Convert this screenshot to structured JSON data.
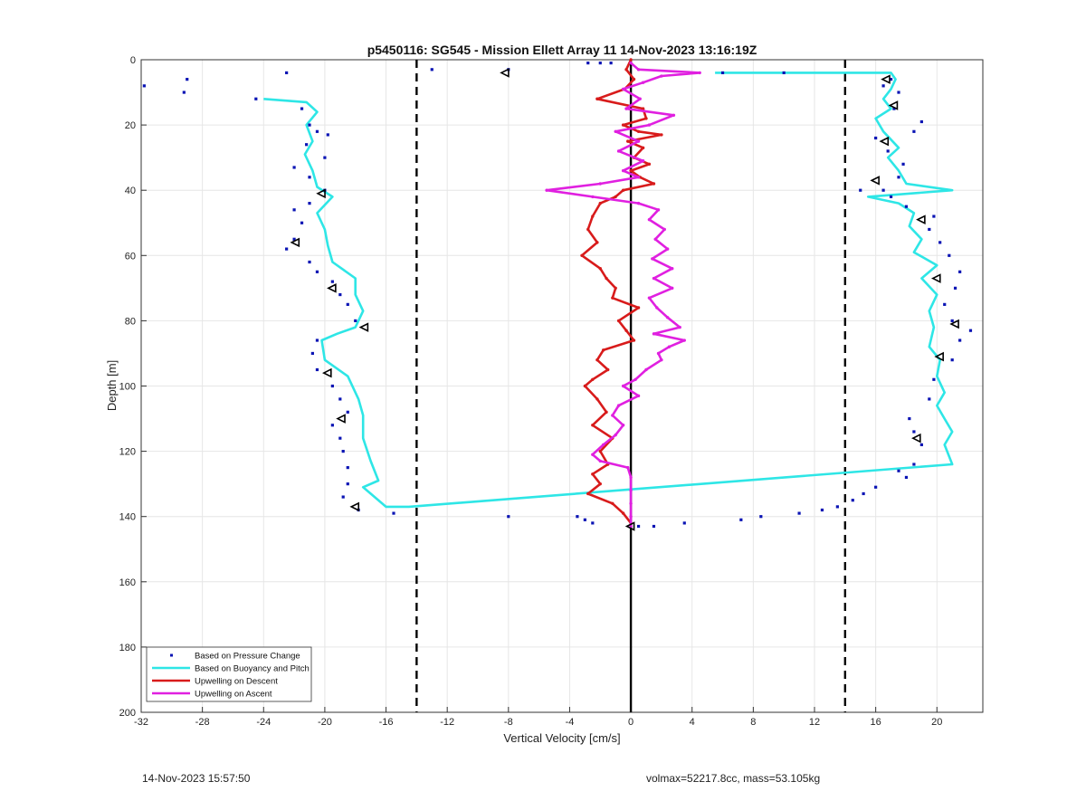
{
  "footer": {
    "timestamp": "14-Nov-2023 15:57:50",
    "params": "volmax=52217.8cc, mass=53.105kg"
  },
  "chart_data": {
    "type": "line",
    "title": "p5450116: SG545 - Mission Ellett Array 11 14-Nov-2023 13:16:19Z",
    "xlabel": "Vertical Velocity [cm/s]",
    "ylabel": "Depth [m]",
    "xlim": [
      -32,
      23
    ],
    "ylim": [
      0,
      200
    ],
    "y_reversed": true,
    "xticks": [
      -32,
      -28,
      -24,
      -20,
      -16,
      -12,
      -8,
      -4,
      0,
      4,
      8,
      12,
      16,
      20
    ],
    "yticks": [
      0,
      20,
      40,
      60,
      80,
      100,
      120,
      140,
      160,
      180,
      200
    ],
    "grid": true,
    "legend_position": "bottom-left",
    "colors": {
      "pressure": "#0a14b4",
      "buoyancy": "#2ee6e6",
      "descent": "#d81b1b",
      "ascent": "#e020e0",
      "grid": "#e6e6e6",
      "axis": "#333333"
    },
    "reference_lines": {
      "dashed_x": [
        -14,
        14
      ],
      "solid_x": [
        0
      ]
    },
    "series": [
      {
        "name": "Based on Pressure Change",
        "style": "dots",
        "points": [
          [
            -31.8,
            8
          ],
          [
            -29,
            6
          ],
          [
            -29.2,
            10
          ],
          [
            -24.5,
            12
          ],
          [
            -22.5,
            4
          ],
          [
            -13,
            3
          ],
          [
            -8,
            3
          ],
          [
            -2.8,
            1
          ],
          [
            -2,
            1
          ],
          [
            -1.3,
            1
          ],
          [
            -21.5,
            15
          ],
          [
            -21,
            20
          ],
          [
            -20.5,
            22
          ],
          [
            -19.8,
            23
          ],
          [
            -21.2,
            26
          ],
          [
            -20,
            30
          ],
          [
            -22,
            33
          ],
          [
            -21,
            36
          ],
          [
            -20,
            40
          ],
          [
            -21,
            44
          ],
          [
            -22,
            46
          ],
          [
            -21.5,
            50
          ],
          [
            -22,
            55
          ],
          [
            -22.5,
            58
          ],
          [
            -21,
            62
          ],
          [
            -20.5,
            65
          ],
          [
            -19.5,
            68
          ],
          [
            -19,
            72
          ],
          [
            -18.5,
            75
          ],
          [
            -18,
            80
          ],
          [
            -20.5,
            86
          ],
          [
            -20.8,
            90
          ],
          [
            -20.5,
            95
          ],
          [
            -19.5,
            100
          ],
          [
            -19,
            104
          ],
          [
            -18.5,
            108
          ],
          [
            -19.5,
            112
          ],
          [
            -19,
            116
          ],
          [
            -18.8,
            120
          ],
          [
            -18.5,
            125
          ],
          [
            -18.5,
            130
          ],
          [
            -18.8,
            134
          ],
          [
            -17.8,
            138
          ],
          [
            -15.5,
            139
          ],
          [
            -8,
            140
          ],
          [
            -3.5,
            140
          ],
          [
            -3,
            141
          ],
          [
            -2.5,
            142
          ],
          [
            0.5,
            143
          ],
          [
            1.5,
            143
          ],
          [
            3.5,
            142
          ],
          [
            7.2,
            141
          ],
          [
            8.5,
            140
          ],
          [
            11,
            139
          ],
          [
            12.5,
            138
          ],
          [
            13.5,
            137
          ],
          [
            14.5,
            135
          ],
          [
            15.2,
            133
          ],
          [
            16,
            131
          ],
          [
            18,
            128
          ],
          [
            17.5,
            126
          ],
          [
            18.5,
            124
          ],
          [
            19,
            118
          ],
          [
            18.5,
            114
          ],
          [
            18.2,
            110
          ],
          [
            19.5,
            104
          ],
          [
            19.8,
            98
          ],
          [
            21,
            92
          ],
          [
            21.5,
            86
          ],
          [
            22.2,
            83
          ],
          [
            21,
            80
          ],
          [
            20.5,
            75
          ],
          [
            21.2,
            70
          ],
          [
            21.5,
            65
          ],
          [
            20.8,
            60
          ],
          [
            20.2,
            56
          ],
          [
            19.5,
            52
          ],
          [
            19.8,
            48
          ],
          [
            18,
            45
          ],
          [
            17,
            42
          ],
          [
            16.5,
            40
          ],
          [
            15,
            40
          ],
          [
            17.5,
            36
          ],
          [
            17.8,
            32
          ],
          [
            16.8,
            28
          ],
          [
            16,
            24
          ],
          [
            18.5,
            22
          ],
          [
            19,
            19
          ],
          [
            17.2,
            15
          ],
          [
            17.5,
            10
          ],
          [
            16.5,
            8
          ],
          [
            17,
            6
          ],
          [
            10,
            4
          ],
          [
            6,
            4
          ]
        ]
      },
      {
        "name": "Based on Buoyancy and Pitch",
        "style": "line",
        "points": [
          [
            5.5,
            4
          ],
          [
            17,
            4
          ],
          [
            17.3,
            6
          ],
          [
            17,
            9
          ],
          [
            16.5,
            12
          ],
          [
            17,
            15
          ],
          [
            16,
            18
          ],
          [
            16.5,
            22
          ],
          [
            17.5,
            27
          ],
          [
            16.8,
            30
          ],
          [
            17.5,
            34
          ],
          [
            18,
            38
          ],
          [
            21,
            40
          ],
          [
            15.5,
            42
          ],
          [
            17.5,
            44
          ],
          [
            18.5,
            47
          ],
          [
            18.2,
            51
          ],
          [
            19,
            55
          ],
          [
            18.5,
            59
          ],
          [
            20,
            63
          ],
          [
            19,
            67
          ],
          [
            20,
            72
          ],
          [
            19.5,
            77
          ],
          [
            19.8,
            82
          ],
          [
            19.5,
            88
          ],
          [
            20.2,
            92
          ],
          [
            20,
            97
          ],
          [
            20.5,
            102
          ],
          [
            20,
            106
          ],
          [
            20.5,
            110
          ],
          [
            21,
            114
          ],
          [
            20.5,
            118
          ],
          [
            21,
            124
          ],
          [
            -14.5,
            137
          ],
          [
            -16,
            137
          ],
          [
            -17.5,
            131
          ],
          [
            -16.5,
            129
          ],
          [
            -17,
            123
          ],
          [
            -17.5,
            116
          ],
          [
            -17.5,
            109
          ],
          [
            -17.8,
            104
          ],
          [
            -18.5,
            97
          ],
          [
            -20,
            92
          ],
          [
            -20.2,
            86
          ],
          [
            -19.2,
            84
          ],
          [
            -18,
            82
          ],
          [
            -17.5,
            77
          ],
          [
            -18,
            72
          ],
          [
            -18,
            67
          ],
          [
            -19.5,
            62
          ],
          [
            -19.8,
            57
          ],
          [
            -20,
            52
          ],
          [
            -20.5,
            47
          ],
          [
            -19.5,
            42
          ],
          [
            -20.5,
            39
          ],
          [
            -20.8,
            34
          ],
          [
            -21.3,
            29
          ],
          [
            -20.8,
            25
          ],
          [
            -21.2,
            20
          ],
          [
            -20.5,
            16
          ],
          [
            -21.2,
            13
          ],
          [
            -24,
            12
          ]
        ]
      },
      {
        "name": "Upwelling on Descent",
        "style": "line",
        "points": [
          [
            0,
            0
          ],
          [
            -0.3,
            3
          ],
          [
            0.2,
            6
          ],
          [
            -0.4,
            9
          ],
          [
            -2.2,
            12
          ],
          [
            0.8,
            15
          ],
          [
            1,
            18
          ],
          [
            -0.5,
            20
          ],
          [
            0.5,
            22
          ],
          [
            2,
            23
          ],
          [
            -0.2,
            25
          ],
          [
            0.8,
            27
          ],
          [
            0.2,
            30
          ],
          [
            1.2,
            32
          ],
          [
            0,
            34
          ],
          [
            0.6,
            36
          ],
          [
            1.5,
            38
          ],
          [
            -0.5,
            40
          ],
          [
            -1,
            42
          ],
          [
            -2,
            44
          ],
          [
            -2.5,
            48
          ],
          [
            -2.8,
            52
          ],
          [
            -2.2,
            56
          ],
          [
            -3.2,
            60
          ],
          [
            -2,
            64
          ],
          [
            -1.6,
            67
          ],
          [
            -1,
            70
          ],
          [
            -1.2,
            73
          ],
          [
            0.5,
            76
          ],
          [
            -0.8,
            80
          ],
          [
            -0.3,
            83
          ],
          [
            0.2,
            86
          ],
          [
            -1.8,
            89
          ],
          [
            -2.2,
            92
          ],
          [
            -1.5,
            95
          ],
          [
            -2.5,
            98
          ],
          [
            -3,
            100
          ],
          [
            -2.2,
            104
          ],
          [
            -1.6,
            108
          ],
          [
            -2.5,
            112
          ],
          [
            -1.2,
            116
          ],
          [
            -2,
            120
          ],
          [
            -1.5,
            124
          ],
          [
            -2.5,
            127
          ],
          [
            -2,
            130
          ],
          [
            -2.8,
            133
          ],
          [
            -1.2,
            136
          ],
          [
            -0.5,
            139
          ],
          [
            0,
            142
          ]
        ]
      },
      {
        "name": "Upwelling on Ascent",
        "style": "line",
        "points": [
          [
            0,
            143
          ],
          [
            0,
            140
          ],
          [
            0,
            136
          ],
          [
            0,
            132
          ],
          [
            0,
            128
          ],
          [
            -0.2,
            125
          ],
          [
            -2,
            123
          ],
          [
            -2.5,
            121
          ],
          [
            -1.8,
            118
          ],
          [
            -1,
            115
          ],
          [
            -0.5,
            112
          ],
          [
            -1.2,
            109
          ],
          [
            -0.8,
            106
          ],
          [
            0.5,
            103
          ],
          [
            -0.5,
            100
          ],
          [
            0.3,
            98
          ],
          [
            1,
            95
          ],
          [
            2,
            92
          ],
          [
            1.8,
            90
          ],
          [
            2.5,
            88
          ],
          [
            3.5,
            86
          ],
          [
            1.5,
            84
          ],
          [
            3.2,
            82
          ],
          [
            2.4,
            79
          ],
          [
            1.7,
            76
          ],
          [
            1.2,
            73
          ],
          [
            2.7,
            70
          ],
          [
            1.5,
            67
          ],
          [
            2.7,
            64
          ],
          [
            1.4,
            61
          ],
          [
            2.4,
            58
          ],
          [
            1.6,
            55
          ],
          [
            2.2,
            52
          ],
          [
            1.2,
            49
          ],
          [
            1.8,
            46
          ],
          [
            0.5,
            44
          ],
          [
            -2.5,
            42
          ],
          [
            -5.5,
            40
          ],
          [
            -2,
            38
          ],
          [
            0.5,
            36
          ],
          [
            -0.5,
            34
          ],
          [
            0.8,
            31
          ],
          [
            -0.8,
            28
          ],
          [
            0.5,
            25
          ],
          [
            -1,
            22
          ],
          [
            1.2,
            20
          ],
          [
            2.8,
            17
          ],
          [
            -0.3,
            15
          ],
          [
            0.6,
            12
          ],
          [
            -0.5,
            9
          ],
          [
            0.8,
            7
          ],
          [
            2,
            5
          ],
          [
            4.5,
            4
          ],
          [
            0.5,
            3
          ],
          [
            0,
            1
          ]
        ]
      }
    ],
    "markers": {
      "style": "open-triangle-left",
      "points": [
        [
          -8.2,
          4
        ],
        [
          16.7,
          6
        ],
        [
          17.2,
          14
        ],
        [
          16.6,
          25
        ],
        [
          16,
          37
        ],
        [
          19,
          49
        ],
        [
          20,
          67
        ],
        [
          21.2,
          81
        ],
        [
          20.2,
          91
        ],
        [
          18.7,
          116
        ],
        [
          -20.2,
          41
        ],
        [
          -21.9,
          56
        ],
        [
          -19.5,
          70
        ],
        [
          -17.4,
          82
        ],
        [
          -19.8,
          96
        ],
        [
          -18.9,
          110
        ],
        [
          -18,
          137
        ],
        [
          0,
          143
        ]
      ]
    }
  }
}
